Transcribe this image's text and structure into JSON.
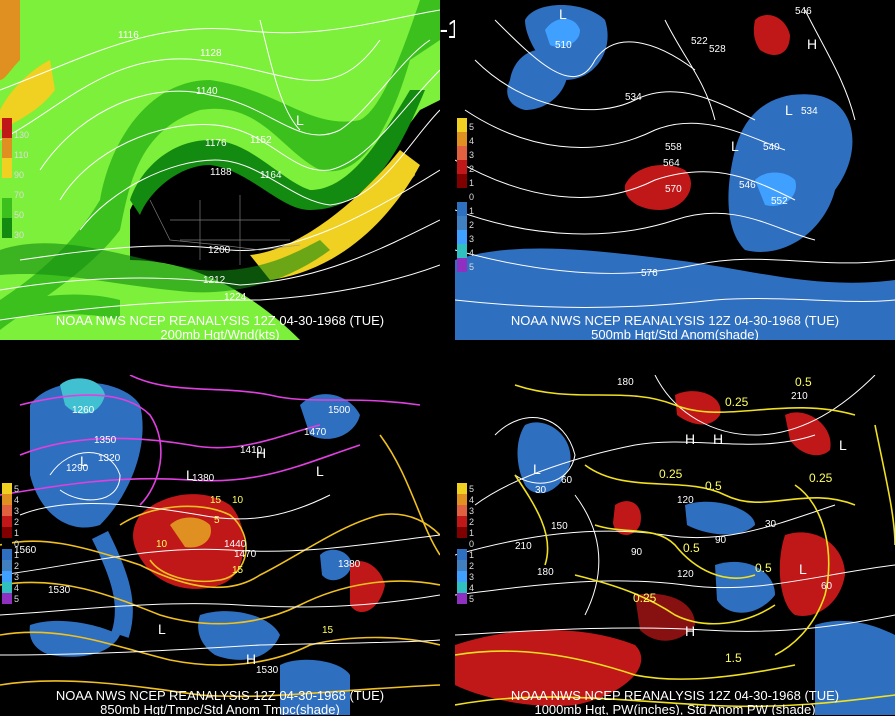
{
  "title": "12Z 04-30-1968 (TUE)",
  "panels": [
    {
      "id": "p1",
      "caption_line1": "NOAA NWS NCEP REANALYSIS 12Z 04-30-1968 (TUE)",
      "caption_line2": "200mb Hgt/Wnd(kts)",
      "legend_labels": [
        "130",
        "110",
        "90",
        "70",
        "50",
        "30"
      ],
      "contour_labels": [
        "1116",
        "1128",
        "1140",
        "1152",
        "1164",
        "1176",
        "1188",
        "1200",
        "1212",
        "1224"
      ],
      "lows": [
        "L"
      ],
      "colors": {
        "wind_light": "#7cf03a",
        "wind_mid": "#3cc01e",
        "wind_dark": "#138a10",
        "wind_yellow": "#f0d020",
        "wind_orange": "#e09020",
        "wind_red": "#c01818"
      }
    },
    {
      "id": "p2",
      "caption_line1": "NOAA NWS NCEP REANALYSIS 12Z 04-30-1968 (TUE)",
      "caption_line2": "500mb Hgt/Std Anom(shade)",
      "legend_labels": [
        "5",
        "4",
        "3",
        "2",
        "1",
        "0",
        "1",
        "2",
        "3",
        "4",
        "5"
      ],
      "contour_labels": [
        "510",
        "522",
        "528",
        "534",
        "540",
        "546",
        "552",
        "558",
        "564",
        "570",
        "576",
        "546",
        "534"
      ],
      "lows": [
        "L",
        "L",
        "L"
      ],
      "highs": [
        "H"
      ],
      "colors": {
        "neg_anom": "#2f6fbf",
        "neg_anom_strong": "#40a0ff",
        "pos_anom": "#c01818"
      }
    },
    {
      "id": "p3",
      "caption_line1": "NOAA NWS NCEP REANALYSIS 12Z 04-30-1968 (TUE)",
      "caption_line2": "850mb Hgt/Tmpc/Std Anom Tmpc(shade)",
      "legend_labels": [
        "5",
        "4",
        "3",
        "2",
        "1",
        "0",
        "1",
        "2",
        "3",
        "4",
        "5"
      ],
      "contour_labels": [
        "1260",
        "1290",
        "1320",
        "1350",
        "1380",
        "1410",
        "1440",
        "1470",
        "1500",
        "1530",
        "1560",
        "1380",
        "1470",
        "1530"
      ],
      "temp_labels": [
        "15",
        "10",
        "5",
        "15",
        "15",
        "10"
      ],
      "lows": [
        "L",
        "L",
        "L",
        "L"
      ],
      "highs": [
        "H",
        "H"
      ],
      "colors": {
        "cold_iso": "#e040e0",
        "warm_iso": "#f0c020",
        "neg_anom": "#2f6fbf",
        "pos_anom": "#c01818"
      }
    },
    {
      "id": "p4",
      "caption_line1": "NOAA NWS NCEP REANALYSIS 12Z 04-30-1968 (TUE)",
      "caption_line2": "1000mb Hgt, PW(inches), Std Anom PW (shade)",
      "legend_labels": [
        "5",
        "4",
        "3",
        "2",
        "1",
        "0",
        "1",
        "2",
        "3",
        "4",
        "5"
      ],
      "contour_labels": [
        "180",
        "210",
        "150",
        "120",
        "90",
        "60",
        "30",
        "180",
        "210",
        "120",
        "90",
        "60",
        "30"
      ],
      "pw_labels": [
        "0.5",
        "0.25",
        "0.5",
        "0.25",
        "0.5",
        "0.25",
        "0.5",
        "1.5",
        "0.25"
      ],
      "lows": [
        "L",
        "L",
        "L"
      ],
      "highs": [
        "H",
        "H",
        "H"
      ],
      "colors": {
        "pw_iso": "#f0e020",
        "neg_anom": "#2f6fbf",
        "pos_anom": "#c01818"
      }
    }
  ]
}
